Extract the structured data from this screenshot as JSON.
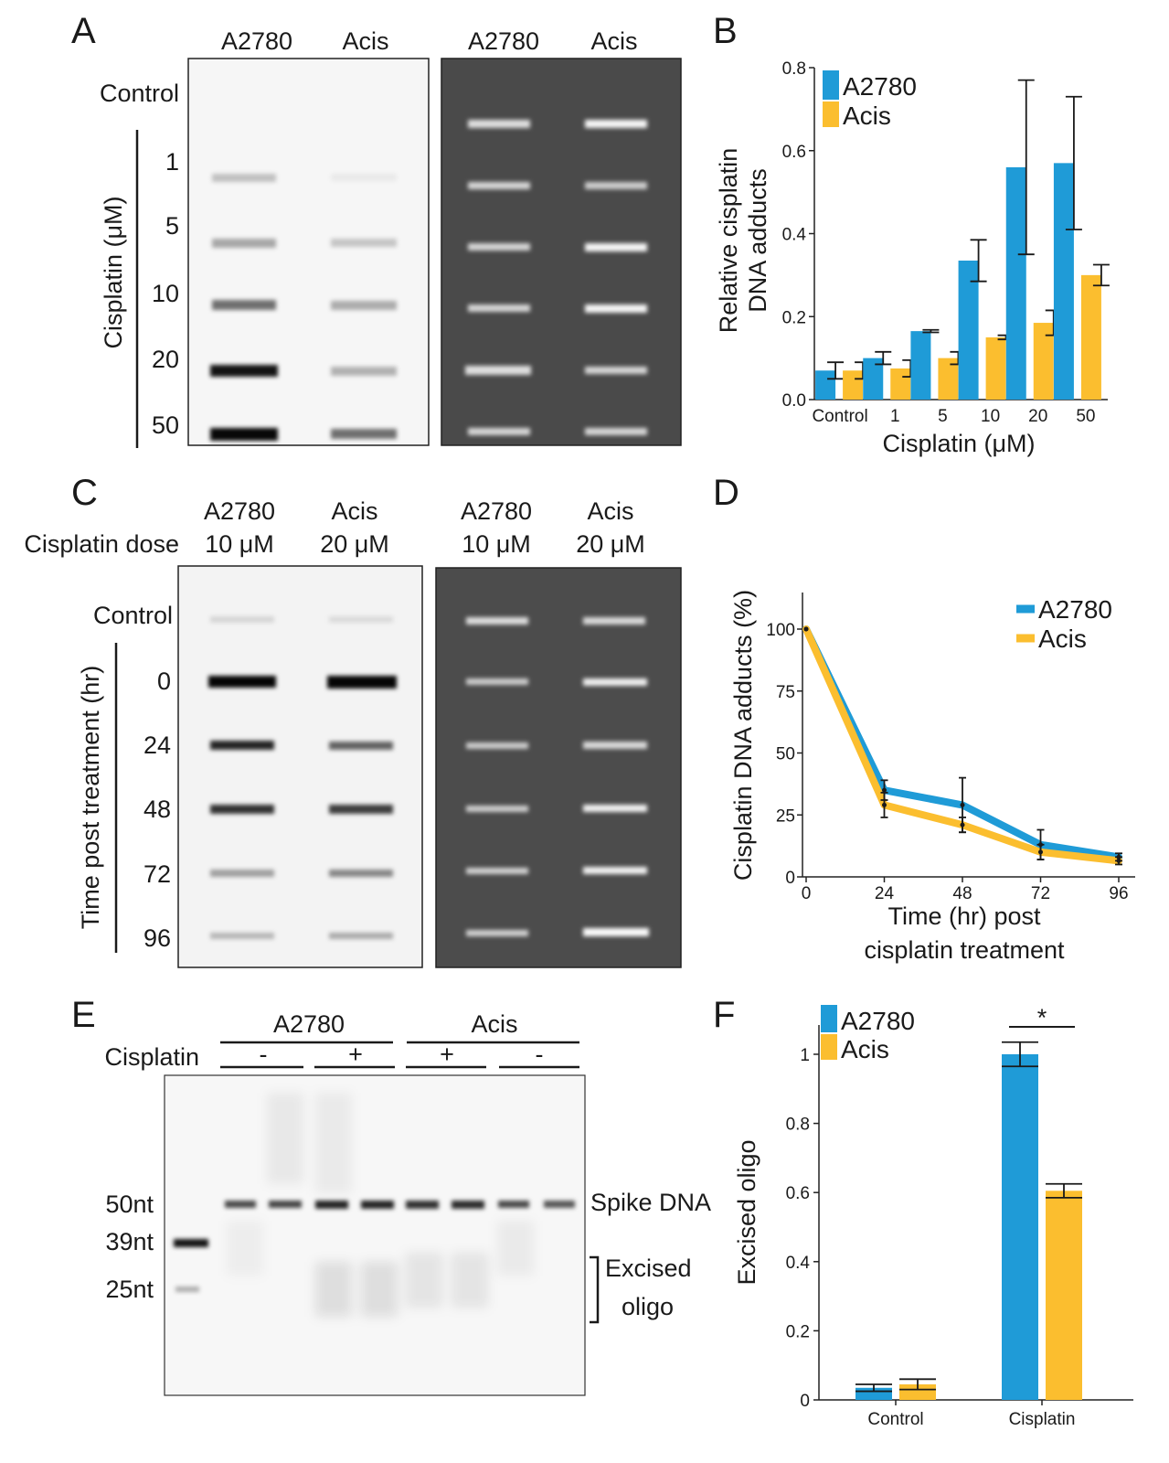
{
  "colors": {
    "a2780": "#1f9bd7",
    "acis": "#fbbe2f",
    "axis": "#222222",
    "dark_blot": "#4a4a4a"
  },
  "panel_labels": [
    "A",
    "B",
    "C",
    "D",
    "E",
    "F"
  ],
  "panelA": {
    "col_labels": [
      "A2780",
      "Acis",
      "A2780",
      "Acis"
    ],
    "control_label": "Control",
    "axis_label": "Cisplatin (μM)",
    "row_labels": [
      "1",
      "5",
      "10",
      "20",
      "50"
    ]
  },
  "panelC": {
    "dose_label": "Cisplatin dose",
    "col_labels": [
      {
        "line": "A2780",
        "dose": "10 μM"
      },
      {
        "line": "Acis",
        "dose": "20 μM"
      },
      {
        "line": "A2780",
        "dose": "10 μM"
      },
      {
        "line": "Acis",
        "dose": "20 μM"
      }
    ],
    "control_label": "Control",
    "axis_label": "Time post treatment (hr)",
    "row_labels": [
      "0",
      "24",
      "48",
      "72",
      "96"
    ]
  },
  "panelE": {
    "group_labels": [
      "A2780",
      "Acis"
    ],
    "cisplatin_label": "Cisplatin",
    "treatment_signs": [
      "-",
      "+",
      "+",
      "-"
    ],
    "marker_labels": [
      "50nt",
      "39nt",
      "25nt"
    ],
    "spike_label": "Spike DNA",
    "excised_label_1": "Excised",
    "excised_label_2": "oligo"
  },
  "chart_data": [
    {
      "id": "B",
      "type": "bar",
      "title": "",
      "xlabel": "Cisplatin (μM)",
      "ylabel_lines": [
        "Relative cisplatin",
        "DNA adducts"
      ],
      "categories": [
        "Control",
        "1",
        "5",
        "10",
        "20",
        "50"
      ],
      "ylim": [
        0,
        0.8
      ],
      "yticks": [
        "0.0",
        "0.2",
        "0.4",
        "0.6",
        "0.8"
      ],
      "legend": "top-left",
      "series": [
        {
          "name": "A2780",
          "values": [
            0.07,
            0.1,
            0.165,
            0.335,
            0.56,
            0.57
          ],
          "errors": [
            0.02,
            0.015,
            0.003,
            0.05,
            0.21,
            0.16
          ]
        },
        {
          "name": "Acis",
          "values": [
            0.07,
            0.075,
            0.1,
            0.15,
            0.185,
            0.3
          ],
          "errors": [
            0.02,
            0.02,
            0.015,
            0.005,
            0.03,
            0.025
          ]
        }
      ]
    },
    {
      "id": "D",
      "type": "line",
      "xlabel_lines": [
        "Time (hr) post",
        "cisplatin treatment"
      ],
      "ylabel": "Cisplatin DNA adducts (%)",
      "x": [
        0,
        24,
        48,
        72,
        96
      ],
      "xticks": [
        "0",
        "24",
        "48",
        "72",
        "96"
      ],
      "xlim": [
        0,
        96
      ],
      "ylim": [
        0,
        115
      ],
      "yticks": [
        "0",
        "25",
        "50",
        "75",
        "100"
      ],
      "legend": "top-right",
      "series": [
        {
          "name": "A2780",
          "values": [
            100,
            35,
            29,
            13,
            8
          ],
          "errors": [
            0,
            4,
            11,
            6,
            1.5
          ]
        },
        {
          "name": "Acis",
          "values": [
            100,
            29,
            21,
            10,
            6.5
          ],
          "errors": [
            0,
            5,
            3,
            3,
            1.5
          ]
        }
      ]
    },
    {
      "id": "F",
      "type": "bar",
      "ylabel": "Excised oligo",
      "categories": [
        "Control",
        "Cisplatin"
      ],
      "ylim": [
        0,
        1.08
      ],
      "yticks": [
        "0",
        "0.2",
        "0.4",
        "0.6",
        "0.8",
        "1"
      ],
      "legend": "top-left",
      "annotation": "*",
      "series": [
        {
          "name": "A2780",
          "values": [
            0.035,
            1.0
          ],
          "errors": [
            0.01,
            0.035
          ]
        },
        {
          "name": "Acis",
          "values": [
            0.045,
            0.605
          ],
          "errors": [
            0.015,
            0.02
          ]
        }
      ]
    }
  ]
}
